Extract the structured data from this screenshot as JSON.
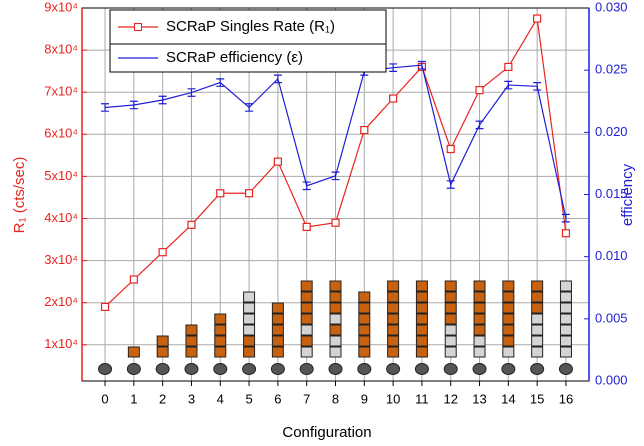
{
  "chart_data": {
    "type": "line",
    "x_label": "Configuration",
    "y_label": "R₁ (cts/sec)",
    "y2_label": "efficiency",
    "x": [
      0,
      1,
      2,
      3,
      4,
      5,
      6,
      7,
      8,
      9,
      10,
      11,
      12,
      13,
      14,
      15,
      16
    ],
    "xlim": [
      -0.8,
      16.8
    ],
    "xticks": [
      0,
      1,
      2,
      3,
      4,
      5,
      6,
      7,
      8,
      9,
      10,
      11,
      12,
      13,
      14,
      15,
      16
    ],
    "ylim": [
      1400,
      90000
    ],
    "yticks": [
      {
        "value": 10000,
        "label": "1x10⁴"
      },
      {
        "value": 20000,
        "label": "2x10⁴"
      },
      {
        "value": 30000,
        "label": "3x10⁴"
      },
      {
        "value": 40000,
        "label": "4x10⁴"
      },
      {
        "value": 50000,
        "label": "5x10⁴"
      },
      {
        "value": 60000,
        "label": "6x10⁴"
      },
      {
        "value": 70000,
        "label": "7x10⁴"
      },
      {
        "value": 80000,
        "label": "8x10⁴"
      },
      {
        "value": 90000,
        "label": "9x10⁴"
      }
    ],
    "y2lim": [
      0,
      0.03
    ],
    "y2ticks": [
      {
        "value": 0,
        "label": "0.000"
      },
      {
        "value": 0.005,
        "label": "0.005"
      },
      {
        "value": 0.01,
        "label": "0.010"
      },
      {
        "value": 0.015,
        "label": "0.015"
      },
      {
        "value": 0.02,
        "label": "0.020"
      },
      {
        "value": 0.025,
        "label": "0.025"
      },
      {
        "value": 0.03,
        "label": "0.030"
      }
    ],
    "grid": true,
    "legend": "upper left",
    "series": [
      {
        "name": "SCRaP Singles Rate (R₁)",
        "color": "#e8251f",
        "values": [
          19000,
          25500,
          32000,
          38500,
          46000,
          46000,
          53500,
          38000,
          39000,
          61000,
          68500,
          76000,
          56500,
          70500,
          76000,
          87500,
          36500
        ]
      },
      {
        "name": "SCRaP efficiency (ε)",
        "color": "#1f1fd6",
        "axis": "y2",
        "values": [
          0.022,
          0.0222,
          0.0226,
          0.0232,
          0.024,
          0.022,
          0.0243,
          0.0157,
          0.0165,
          0.0249,
          0.0252,
          0.0254,
          0.0158,
          0.0206,
          0.0238,
          0.0237,
          0.0131
        ],
        "errors": [
          0.0003,
          0.0003,
          0.0003,
          0.0003,
          0.0003,
          0.0003,
          0.0003,
          0.0003,
          0.0003,
          0.0003,
          0.0003,
          0.0003,
          0.0003,
          0.0003,
          0.0003,
          0.0003,
          0.0003
        ]
      }
    ]
  }
}
